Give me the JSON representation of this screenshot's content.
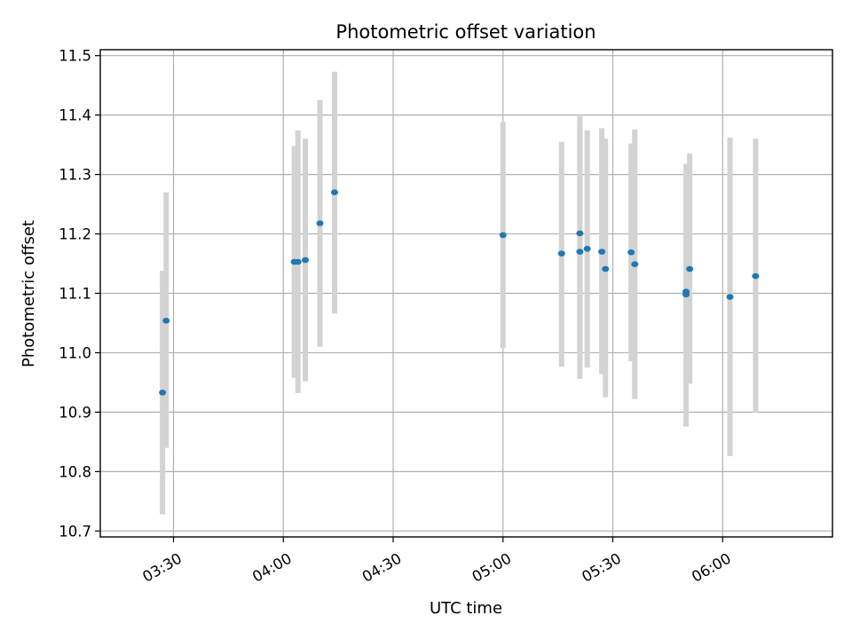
{
  "chart_data": {
    "type": "scatter",
    "title": "Photometric offset variation",
    "xlabel": "UTC time",
    "ylabel": "Photometric offset",
    "x_is_time": true,
    "xlim": [
      "03:10",
      "06:30"
    ],
    "ylim": [
      10.69,
      11.51
    ],
    "x_ticks": [
      "03:30",
      "04:00",
      "04:30",
      "05:00",
      "05:30",
      "06:00"
    ],
    "y_ticks": [
      "10.7",
      "10.8",
      "10.9",
      "11.0",
      "11.1",
      "11.2",
      "11.3",
      "11.4",
      "11.5"
    ],
    "grid": true,
    "colors": {
      "point": "#1f77b4",
      "errorbar": "#d3d3d3",
      "grid": "#b0b0b0"
    },
    "points": [
      {
        "x": "03:27",
        "y": 10.933,
        "err_low": 10.728,
        "err_high": 11.138
      },
      {
        "x": "03:28",
        "y": 11.054,
        "err_low": 10.84,
        "err_high": 11.27
      },
      {
        "x": "04:03",
        "y": 11.153,
        "err_low": 10.958,
        "err_high": 11.348
      },
      {
        "x": "04:04",
        "y": 11.153,
        "err_low": 10.932,
        "err_high": 11.374
      },
      {
        "x": "04:06",
        "y": 11.156,
        "err_low": 10.952,
        "err_high": 11.36
      },
      {
        "x": "04:10",
        "y": 11.218,
        "err_low": 11.01,
        "err_high": 11.425
      },
      {
        "x": "04:14",
        "y": 11.27,
        "err_low": 11.066,
        "err_high": 11.473
      },
      {
        "x": "05:00",
        "y": 11.198,
        "err_low": 11.008,
        "err_high": 11.388
      },
      {
        "x": "05:16",
        "y": 11.167,
        "err_low": 10.977,
        "err_high": 11.355
      },
      {
        "x": "05:21",
        "y": 11.201,
        "err_low": 11.004,
        "err_high": 11.398
      },
      {
        "x": "05:21",
        "y": 11.17,
        "err_low": 10.956,
        "err_high": 11.382
      },
      {
        "x": "05:23",
        "y": 11.175,
        "err_low": 10.975,
        "err_high": 11.374
      },
      {
        "x": "05:27",
        "y": 11.17,
        "err_low": 10.964,
        "err_high": 11.378
      },
      {
        "x": "05:28",
        "y": 11.141,
        "err_low": 10.925,
        "err_high": 11.36
      },
      {
        "x": "05:35",
        "y": 11.169,
        "err_low": 10.986,
        "err_high": 11.352
      },
      {
        "x": "05:36",
        "y": 11.149,
        "err_low": 10.922,
        "err_high": 11.376
      },
      {
        "x": "05:50",
        "y": 11.098,
        "err_low": 10.876,
        "err_high": 11.318
      },
      {
        "x": "05:50",
        "y": 11.103,
        "err_low": 10.93,
        "err_high": 11.275
      },
      {
        "x": "05:51",
        "y": 11.141,
        "err_low": 10.948,
        "err_high": 11.335
      },
      {
        "x": "06:02",
        "y": 11.094,
        "err_low": 10.826,
        "err_high": 11.362
      },
      {
        "x": "06:09",
        "y": 11.129,
        "err_low": 10.899,
        "err_high": 11.36
      }
    ]
  }
}
